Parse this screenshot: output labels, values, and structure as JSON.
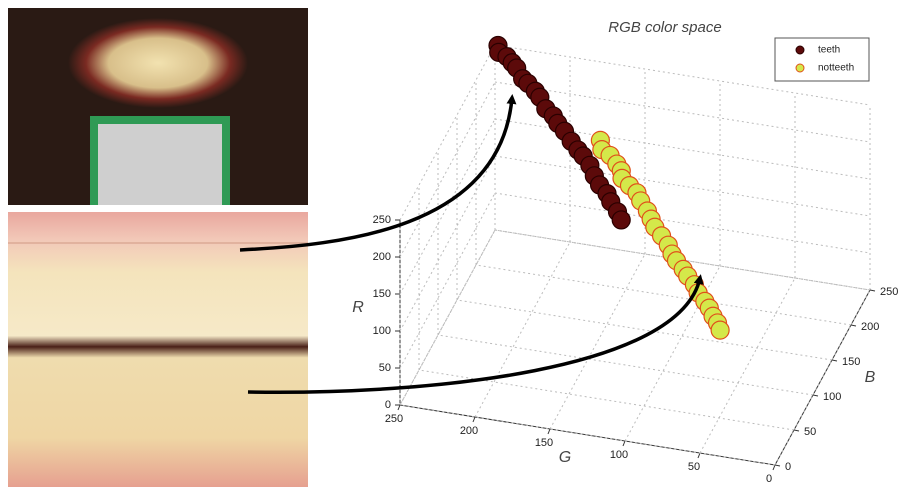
{
  "chart_data": {
    "type": "scatter3d",
    "title": "RGB  color space",
    "xlabel": "G",
    "ylabel": "B",
    "zlabel": "R",
    "xlim": [
      0,
      250
    ],
    "ylim": [
      0,
      250
    ],
    "zlim": [
      0,
      250
    ],
    "xticks": [
      0,
      50,
      100,
      150,
      200,
      250
    ],
    "yticks": [
      0,
      50,
      100,
      150,
      200,
      250
    ],
    "zticks": [
      0,
      50,
      100,
      150,
      200,
      250
    ],
    "grid": true,
    "legend": "upper right",
    "series": [
      {
        "name": "teeth",
        "color": "#5c0a0a",
        "edge": "#2a0000",
        "r": [
          250,
          247,
          245,
          240,
          238,
          233,
          230,
          225,
          222,
          216,
          212,
          207,
          204,
          198,
          194,
          189,
          184,
          179,
          174,
          168,
          164,
          158,
          154
        ],
        "g": [
          248,
          246,
          240,
          236,
          232,
          226,
          222,
          216,
          212,
          206,
          200,
          196,
          190,
          184,
          178,
          174,
          168,
          163,
          158,
          152,
          148,
          142,
          138
        ],
        "b": [
          250,
          244,
          242,
          240,
          236,
          228,
          226,
          222,
          218,
          210,
          206,
          202,
          196,
          190,
          184,
          182,
          176,
          168,
          162,
          158,
          152,
          146,
          140
        ]
      },
      {
        "name": "notteeth",
        "color": "#d4e84a",
        "edge": "#e0501a",
        "r": [
          220,
          216,
          212,
          208,
          204,
          200,
          196,
          192,
          188,
          182,
          178,
          174,
          170,
          165,
          160,
          156,
          152,
          148,
          144,
          140,
          136,
          132,
          128,
          124,
          120
        ],
        "g": [
          161,
          158,
          152,
          146,
          142,
          140,
          134,
          128,
          124,
          118,
          114,
          110,
          104,
          98,
          94,
          90,
          84,
          80,
          74,
          70,
          64,
          60,
          56,
          52,
          49
        ],
        "b": [
          176,
          168,
          166,
          160,
          156,
          150,
          146,
          142,
          136,
          130,
          124,
          118,
          112,
          106,
          100,
          96,
          90,
          86,
          80,
          74,
          68,
          64,
          58,
          54,
          49
        ]
      }
    ]
  }
}
